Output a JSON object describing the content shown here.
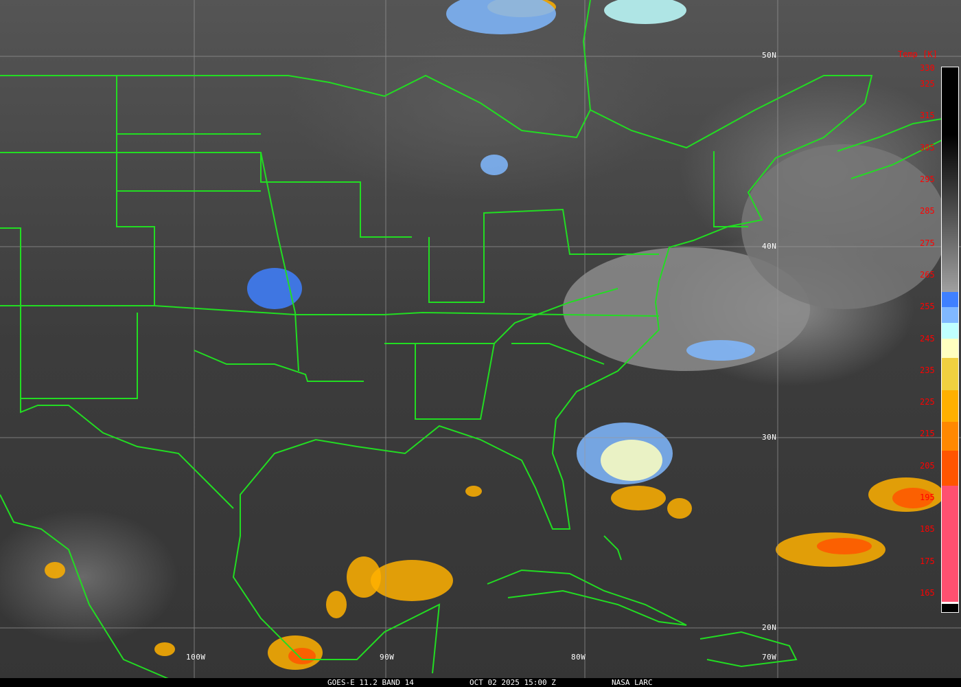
{
  "caption": {
    "satellite": "GOES-E 11.2 BAND 14",
    "datetime": "OCT 02 2025 15:00 Z",
    "source": "NASA LARC"
  },
  "grid_labels": {
    "lat": [
      "50N",
      "40N",
      "30N",
      "20N"
    ],
    "lon": [
      "100W",
      "90W",
      "80W",
      "70W"
    ]
  },
  "colorbar": {
    "title": "Temp [K]",
    "labels": [
      "330",
      "325",
      "315",
      "305",
      "295",
      "285",
      "275",
      "265",
      "255",
      "245",
      "235",
      "225",
      "215",
      "205",
      "195",
      "185",
      "175",
      "165"
    ],
    "colors": {
      "warm_black": "#000000",
      "mid_grey": "#a0a0a0",
      "blue": "#3f80ff",
      "light_blue": "#80b8ff",
      "pale_cyan": "#c0ffff",
      "cream": "#ffffc0",
      "yellow": "#f0d040",
      "orange": "#ffb000",
      "dark_orange": "#ff8800",
      "red_orange": "#ff5500",
      "pink": "#ff5070"
    }
  },
  "boundary_color": "#22dd22"
}
